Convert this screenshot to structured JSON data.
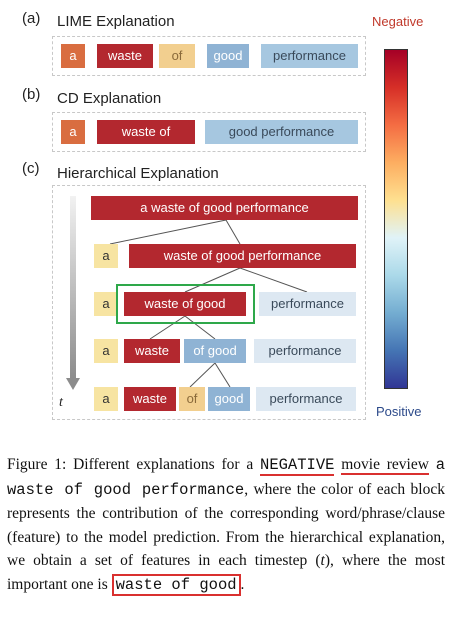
{
  "panels": {
    "a": {
      "label": "(a)",
      "title": "LIME Explanation",
      "tokens": [
        "a",
        "waste",
        "of",
        "good",
        "performance"
      ]
    },
    "b": {
      "label": "(b)",
      "title": "CD Explanation",
      "tokens": [
        "a",
        "waste of",
        "good performance"
      ]
    },
    "c": {
      "label": "(c)",
      "title": "Hierarchical Explanation",
      "timestep_label": "t",
      "rows": [
        [
          "a waste of good performance"
        ],
        [
          "a",
          "waste of good performance"
        ],
        [
          "a",
          "waste of good",
          "performance"
        ],
        [
          "a",
          "waste",
          "of good",
          "performance"
        ],
        [
          "a",
          "waste",
          "of",
          "good",
          "performance"
        ]
      ]
    }
  },
  "colorbar": {
    "top_label": "Negative",
    "bottom_label": "Positive",
    "top_color": "#a50026",
    "bottom_color": "#313695"
  },
  "caption": {
    "p1": "Figure 1:   Different explanations for a ",
    "neg": "NEGATIVE",
    "sp": " ",
    "review": "movie review",
    "sp2": " ",
    "example": "a waste of good performance",
    "p2": ", where the color of each block represents the contribution of the corresponding word/phrase/clause (feature) to the model prediction. From the hierarchical explanation, we obtain a set of features in each timestep (",
    "t": "t",
    "p3": "), where the most important one is ",
    "important": "waste of good",
    "end": "."
  },
  "highlight_color": "#d9302f",
  "selection_color": "#2ea84a"
}
